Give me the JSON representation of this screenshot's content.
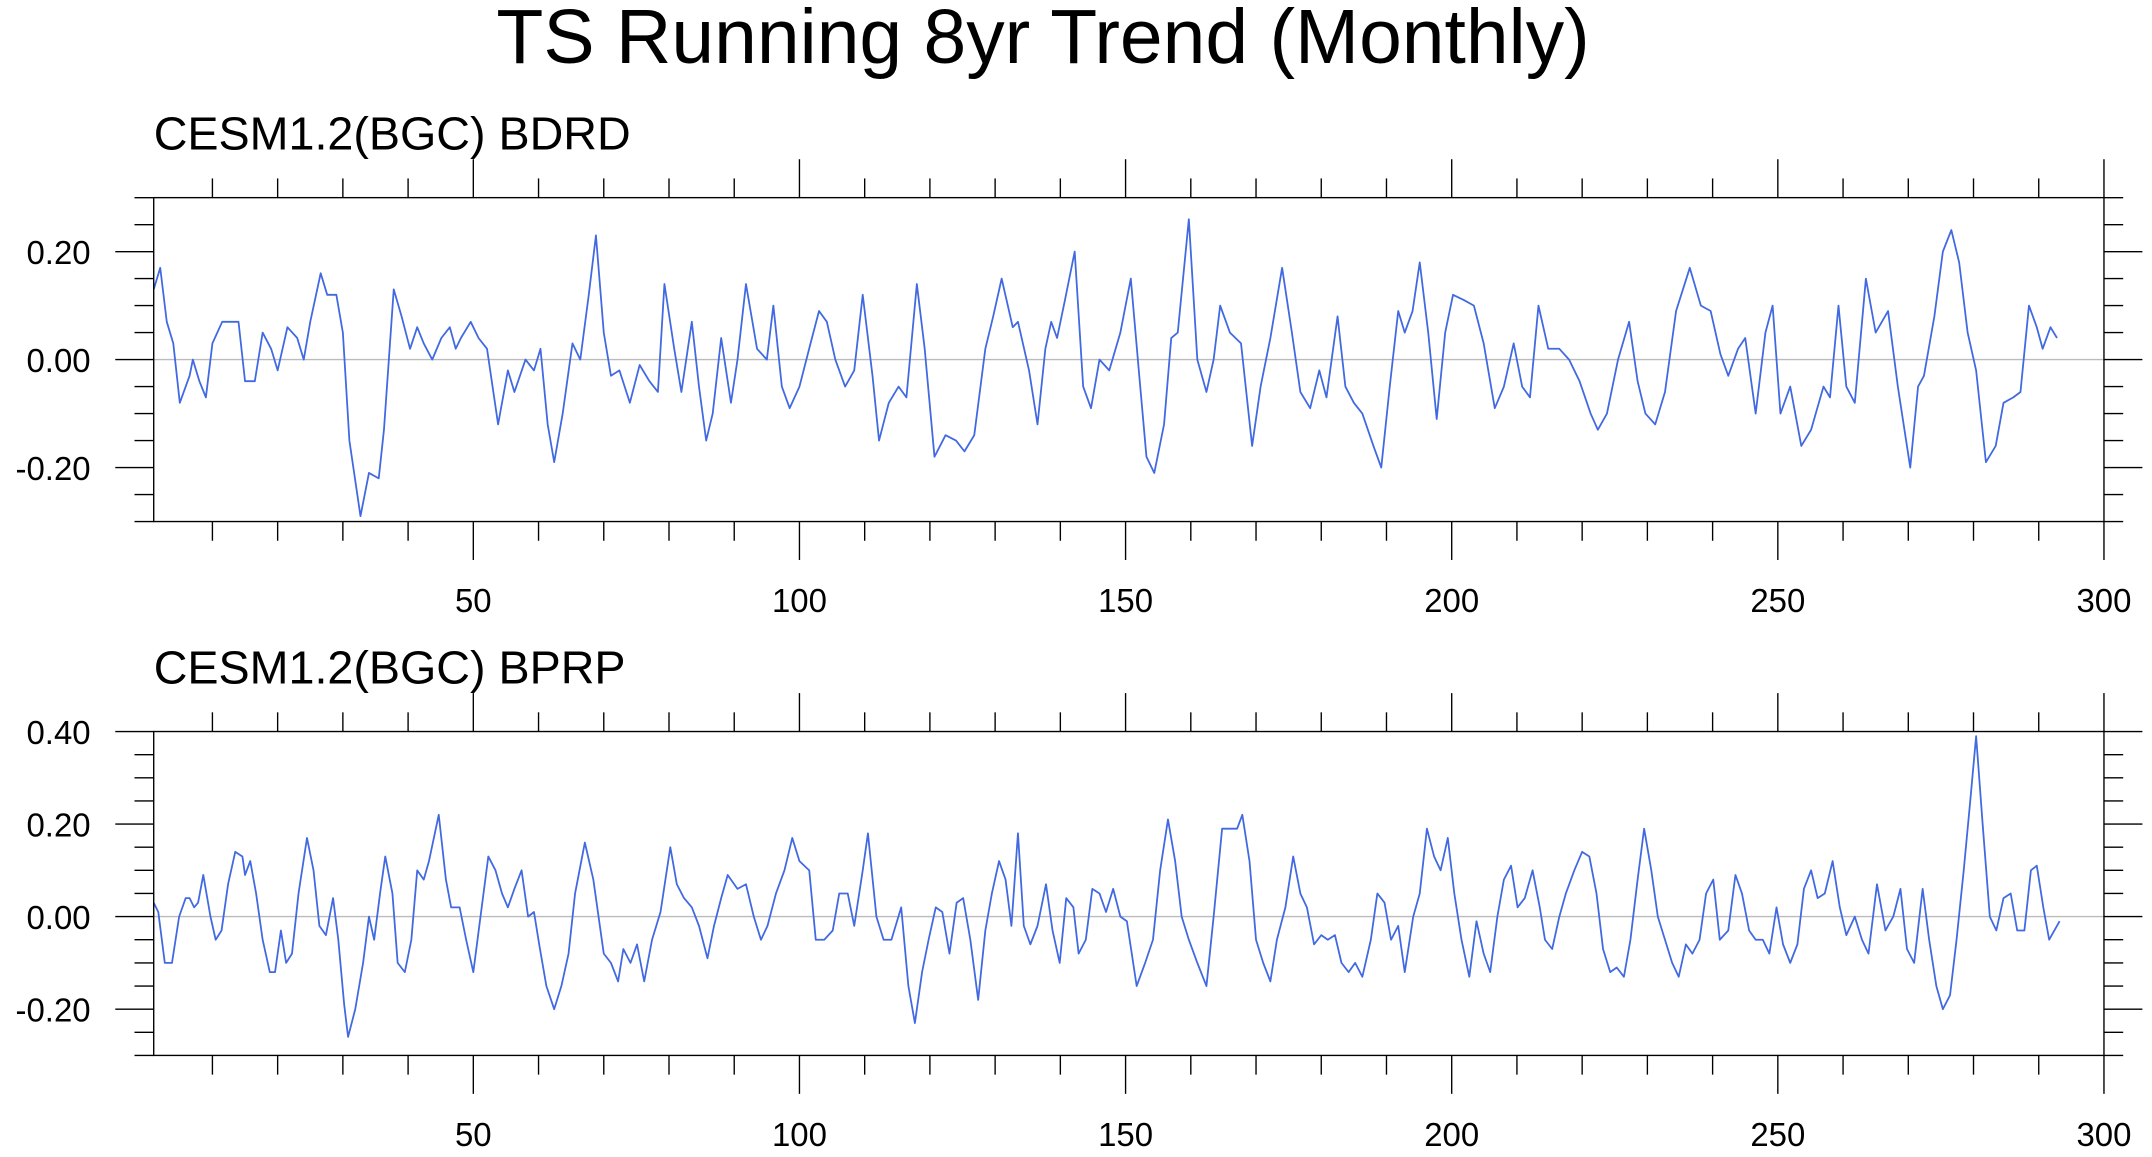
{
  "title": "TS Running 8yr Trend (Monthly)",
  "chart_data": [
    {
      "type": "line",
      "title": "CESM1.2(BGC) BDRD",
      "x": [
        1,
        2,
        3,
        4,
        5,
        6.5,
        7,
        8,
        9,
        10,
        11.5,
        14,
        15,
        16.5,
        17.7,
        19,
        20,
        21.5,
        23,
        24,
        25,
        26.6,
        27.6,
        29,
        30,
        31,
        32.7,
        34,
        35.5,
        36.3,
        37.8,
        39,
        40.3,
        41.4,
        42.4,
        43.7,
        45.1,
        46.4,
        47.3,
        48.1,
        49.6,
        50.8,
        52.1,
        53.8,
        55.3,
        56.3,
        58,
        59.3,
        60.3,
        61.4,
        62.4,
        63.7,
        65.2,
        66.4,
        67.7,
        68.8,
        70,
        71.1,
        72.4,
        74,
        75.5,
        77,
        78.3,
        79.3,
        80.8,
        81.9,
        83.5,
        84.6,
        85.7,
        86.7,
        88,
        89.5,
        90.5,
        91.8,
        93.5,
        95,
        96,
        97.3,
        98.5,
        100,
        101.7,
        103,
        104.2,
        105.5,
        107,
        108.4,
        109.7,
        111.2,
        112.2,
        113.7,
        115.2,
        116.4,
        118,
        119.2,
        120.7,
        122.4,
        124,
        125.3,
        126.8,
        128.5,
        129.7,
        131,
        132.7,
        133.5,
        135.2,
        136.5,
        137.7,
        138.6,
        139.5,
        140.7,
        142.2,
        143.5,
        144.7,
        146,
        147.5,
        149.2,
        150.8,
        152.1,
        153.2,
        154.4,
        155.9,
        157,
        158,
        159.7,
        161,
        162.4,
        163.5,
        164.5,
        166,
        167.7,
        169.4,
        170.7,
        172.2,
        174,
        175.5,
        176.8,
        178.3,
        179.7,
        180.8,
        182.5,
        183.7,
        185,
        186.3,
        188,
        189.2,
        190.5,
        191.8,
        192.8,
        194,
        195.1,
        196.4,
        197.7,
        199,
        200.2,
        201.9,
        203.4,
        204.9,
        206.6,
        208,
        209.5,
        210.8,
        212,
        213.3,
        214.8,
        216.5,
        218,
        219.6,
        221.3,
        222.4,
        223.8,
        225.5,
        227.2,
        228.5,
        229.7,
        231.2,
        232.7,
        234.4,
        236.5,
        238.2,
        239.7,
        241.2,
        242.4,
        243.9,
        245,
        246.6,
        248.1,
        249.2,
        250.4,
        251.9,
        253.6,
        255.1,
        257,
        258,
        259.3,
        260.5,
        261.8,
        263.5,
        265,
        266.9,
        268.4,
        270.3,
        271.5,
        272.4,
        274,
        275.3,
        276.6,
        277.8,
        279.1,
        280.4,
        281.9,
        283.4,
        284.6,
        286.1,
        287.2,
        288.5,
        289.7,
        290.6,
        291.8,
        292.8
      ],
      "series": [
        {
          "color": "#4169e1",
          "values": [
            0.13,
            0.17,
            0.07,
            0.03,
            -0.08,
            -0.03,
            0,
            -0.04,
            -0.07,
            0.03,
            0.07,
            0.07,
            -0.04,
            -0.04,
            0.05,
            0.02,
            -0.02,
            0.06,
            0.04,
            0,
            0.07,
            0.16,
            0.12,
            0.12,
            0.05,
            -0.15,
            -0.29,
            -0.21,
            -0.22,
            -0.13,
            0.13,
            0.08,
            0.02,
            0.06,
            0.03,
            0,
            0.04,
            0.06,
            0.02,
            0.04,
            0.07,
            0.04,
            0.02,
            -0.12,
            -0.02,
            -0.06,
            0,
            -0.02,
            0.02,
            -0.12,
            -0.19,
            -0.1,
            0.03,
            0,
            0.12,
            0.23,
            0.05,
            -0.03,
            -0.02,
            -0.08,
            -0.01,
            -0.04,
            -0.06,
            0.14,
            0.02,
            -0.06,
            0.07,
            -0.05,
            -0.15,
            -0.1,
            0.04,
            -0.08,
            0,
            0.14,
            0.02,
            0,
            0.1,
            -0.05,
            -0.09,
            -0.05,
            0.03,
            0.09,
            0.07,
            0,
            -0.05,
            -0.02,
            0.12,
            -0.03,
            -0.15,
            -0.08,
            -0.05,
            -0.07,
            0.14,
            0.02,
            -0.18,
            -0.14,
            -0.15,
            -0.17,
            -0.14,
            0.02,
            0.08,
            0.15,
            0.06,
            0.07,
            -0.02,
            -0.12,
            0.02,
            0.07,
            0.04,
            0.11,
            0.2,
            -0.05,
            -0.09,
            0,
            -0.02,
            0.05,
            0.15,
            -0.03,
            -0.18,
            -0.21,
            -0.12,
            0.04,
            0.05,
            0.26,
            0,
            -0.06,
            0,
            0.1,
            0.05,
            0.03,
            -0.16,
            -0.05,
            0.04,
            0.17,
            0.05,
            -0.06,
            -0.09,
            -0.02,
            -0.07,
            0.08,
            -0.05,
            -0.08,
            -0.1,
            -0.16,
            -0.2,
            -0.05,
            0.09,
            0.05,
            0.09,
            0.18,
            0.05,
            -0.11,
            0.05,
            0.12,
            0.11,
            0.1,
            0.03,
            -0.09,
            -0.05,
            0.03,
            -0.05,
            -0.07,
            0.1,
            0.02,
            0.02,
            0,
            -0.04,
            -0.1,
            -0.13,
            -0.1,
            0,
            0.07,
            -0.04,
            -0.1,
            -0.12,
            -0.06,
            0.09,
            0.17,
            0.1,
            0.09,
            0.01,
            -0.03,
            0.02,
            0.04,
            -0.1,
            0.05,
            0.1,
            -0.1,
            -0.05,
            -0.16,
            -0.13,
            -0.05,
            -0.07,
            0.1,
            -0.05,
            -0.08,
            0.15,
            0.05,
            0.09,
            -0.05,
            -0.2,
            -0.05,
            -0.03,
            0.08,
            0.2,
            0.24,
            0.18,
            0.05,
            -0.02,
            -0.19,
            -0.16,
            -0.08,
            -0.07,
            -0.06,
            0.1,
            0.06,
            0.02,
            0.06,
            0.04
          ]
        }
      ],
      "xlim": [
        1,
        300
      ],
      "xticks": [
        50,
        100,
        150,
        200,
        250,
        300
      ],
      "xminorticks": [
        10,
        20,
        30,
        40,
        60,
        70,
        80,
        90,
        110,
        120,
        130,
        140,
        160,
        170,
        180,
        190,
        210,
        220,
        230,
        240,
        260,
        270,
        280,
        290
      ],
      "ylim": [
        -0.3,
        0.3
      ],
      "yticks": [
        {
          "value": -0.2,
          "label": "-0.20"
        },
        {
          "value": 0,
          "label": "0.00"
        },
        {
          "value": 0.2,
          "label": "0.20"
        }
      ],
      "yminorticks": [
        -0.3,
        -0.25,
        -0.15,
        -0.1,
        -0.05,
        0.05,
        0.1,
        0.15,
        0.25,
        0.3
      ],
      "reference_line": 0
    },
    {
      "type": "line",
      "title": "CESM1.2(BGC) BPRP",
      "x": [
        1,
        1.7,
        2.7,
        3.8,
        4.9,
        5.9,
        6.5,
        7.2,
        7.8,
        8.6,
        9.7,
        10.5,
        11.4,
        12.4,
        13.5,
        14.6,
        15,
        15.8,
        16.7,
        17.7,
        18.8,
        19.6,
        20.5,
        21.3,
        22.2,
        23.2,
        24.5,
        25.5,
        26.4,
        27.4,
        28.5,
        29.3,
        30.2,
        30.8,
        31.9,
        33.1,
        34,
        34.8,
        35.7,
        36.5,
        37.6,
        38.4,
        39.5,
        40.5,
        41.4,
        42.4,
        43.2,
        44.7,
        45.8,
        46.6,
        47.9,
        48.9,
        50,
        51.1,
        52.3,
        53.4,
        54.4,
        55.3,
        56.3,
        57.4,
        58.4,
        59.3,
        60.1,
        61.2,
        62.4,
        63.5,
        64.6,
        65.6,
        67.1,
        68.4,
        69.2,
        70,
        71.1,
        72.2,
        73,
        74.1,
        75.1,
        76.2,
        77.4,
        78.7,
        80.2,
        81.2,
        82.3,
        83.5,
        84.6,
        85.9,
        86.9,
        88,
        89,
        90.5,
        91.8,
        93,
        94.1,
        95.1,
        96.4,
        97.7,
        98.9,
        100,
        101.5,
        102.5,
        103.8,
        105.1,
        106.1,
        107.4,
        108.4,
        109.7,
        110.5,
        111.8,
        112.9,
        114.1,
        115.6,
        116.7,
        117.7,
        118.8,
        119.8,
        120.9,
        121.9,
        123,
        124.1,
        125.1,
        126.2,
        127.4,
        128.5,
        129.5,
        130.6,
        131.6,
        132.5,
        133.5,
        134.4,
        135.4,
        136.5,
        137.8,
        138.8,
        139.9,
        140.9,
        142,
        142.8,
        143.9,
        144.9,
        146,
        147,
        148.1,
        149.2,
        150.2,
        151.7,
        153,
        154.2,
        155.3,
        156.5,
        157.6,
        158.6,
        159.7,
        161,
        162.4,
        163.5,
        164.8,
        166,
        167.1,
        167.9,
        169,
        170,
        171.1,
        172.2,
        173.2,
        174.5,
        175.7,
        176.8,
        177.8,
        178.9,
        180,
        181,
        182.1,
        183.1,
        184.2,
        185.2,
        186.3,
        187.6,
        188.6,
        189.7,
        190.7,
        191.8,
        192.8,
        194.1,
        195.1,
        196.2,
        197.3,
        198.3,
        199.4,
        200.4,
        201.5,
        202.7,
        203.8,
        204.9,
        205.9,
        207,
        208,
        209.1,
        210.1,
        211.2,
        212.4,
        213.5,
        214.3,
        215.4,
        216.5,
        217.5,
        218.8,
        220,
        221.1,
        222.2,
        223.2,
        224.3,
        225.3,
        226.4,
        227.4,
        228.5,
        229.5,
        230.6,
        231.6,
        232.7,
        233.8,
        234.8,
        235.9,
        236.9,
        238,
        239,
        240.1,
        241.1,
        242.4,
        243.5,
        244.5,
        245.6,
        246.6,
        247.7,
        248.7,
        249.8,
        250.8,
        251.9,
        253,
        254,
        255.1,
        256.1,
        257.2,
        258.4,
        259.5,
        260.5,
        261.8,
        262.9,
        263.9,
        265.2,
        266.5,
        267.7,
        268.8,
        269.8,
        270.9,
        272.2,
        273.2,
        274.3,
        275.3,
        276.4,
        277.4,
        278.5,
        279.5,
        280.4,
        281.4,
        282.5,
        283.5,
        284.6,
        285.7,
        286.7,
        287.8,
        288.8,
        289.7,
        290.7,
        291.6,
        292.4,
        293.2
      ],
      "series": [
        {
          "color": "#4169e1",
          "values": [
            0.03,
            0.01,
            -0.1,
            -0.1,
            0.0,
            0.04,
            0.04,
            0.02,
            0.03,
            0.09,
            0.0,
            -0.05,
            -0.03,
            0.07,
            0.14,
            0.13,
            0.09,
            0.12,
            0.05,
            -0.05,
            -0.12,
            -0.12,
            -0.03,
            -0.1,
            -0.08,
            0.05,
            0.17,
            0.1,
            -0.02,
            -0.04,
            0.04,
            -0.05,
            -0.19,
            -0.26,
            -0.2,
            -0.1,
            0.0,
            -0.05,
            0.05,
            0.13,
            0.05,
            -0.1,
            -0.12,
            -0.05,
            0.1,
            0.08,
            0.12,
            0.22,
            0.08,
            0.02,
            0.02,
            -0.05,
            -0.12,
            0.0,
            0.13,
            0.1,
            0.05,
            0.02,
            0.06,
            0.1,
            0.0,
            0.01,
            -0.06,
            -0.15,
            -0.2,
            -0.15,
            -0.08,
            0.05,
            0.16,
            0.08,
            0.0,
            -0.08,
            -0.1,
            -0.14,
            -0.07,
            -0.1,
            -0.06,
            -0.14,
            -0.05,
            0.01,
            0.15,
            0.07,
            0.04,
            0.02,
            -0.02,
            -0.09,
            -0.02,
            0.04,
            0.09,
            0.06,
            0.07,
            0.0,
            -0.05,
            -0.02,
            0.05,
            0.1,
            0.17,
            0.12,
            0.1,
            -0.05,
            -0.05,
            -0.03,
            0.05,
            0.05,
            -0.02,
            0.1,
            0.18,
            0.0,
            -0.05,
            -0.05,
            0.02,
            -0.15,
            -0.23,
            -0.12,
            -0.05,
            0.02,
            0.01,
            -0.08,
            0.03,
            0.04,
            -0.05,
            -0.18,
            -0.03,
            0.05,
            0.12,
            0.08,
            -0.02,
            0.18,
            -0.02,
            -0.06,
            -0.02,
            0.07,
            -0.03,
            -0.1,
            0.04,
            0.02,
            -0.08,
            -0.05,
            0.06,
            0.05,
            0.01,
            0.06,
            0.0,
            -0.01,
            -0.15,
            -0.1,
            -0.05,
            0.1,
            0.21,
            0.12,
            0.0,
            -0.05,
            -0.1,
            -0.15,
            0.0,
            0.19,
            0.19,
            0.19,
            0.22,
            0.12,
            -0.05,
            -0.1,
            -0.14,
            -0.05,
            0.02,
            0.13,
            0.05,
            0.02,
            -0.06,
            -0.04,
            -0.05,
            -0.04,
            -0.1,
            -0.12,
            -0.1,
            -0.13,
            -0.05,
            0.05,
            0.03,
            -0.05,
            -0.02,
            -0.12,
            0.0,
            0.05,
            0.19,
            0.13,
            0.1,
            0.17,
            0.05,
            -0.05,
            -0.13,
            -0.01,
            -0.08,
            -0.12,
            0.0,
            0.08,
            0.11,
            0.02,
            0.04,
            0.1,
            0.02,
            -0.05,
            -0.07,
            0.0,
            0.05,
            0.1,
            0.14,
            0.13,
            0.05,
            -0.07,
            -0.12,
            -0.11,
            -0.13,
            -0.05,
            0.08,
            0.19,
            0.1,
            0.0,
            -0.05,
            -0.1,
            -0.13,
            -0.06,
            -0.08,
            -0.05,
            0.05,
            0.08,
            -0.05,
            -0.03,
            0.09,
            0.05,
            -0.03,
            -0.05,
            -0.05,
            -0.08,
            0.02,
            -0.06,
            -0.1,
            -0.06,
            0.06,
            0.1,
            0.04,
            0.05,
            0.12,
            0.02,
            -0.04,
            0.0,
            -0.05,
            -0.08,
            0.07,
            -0.03,
            0.0,
            0.06,
            -0.07,
            -0.1,
            0.06,
            -0.05,
            -0.15,
            -0.2,
            -0.17,
            -0.05,
            0.1,
            0.25,
            0.39,
            0.2,
            0.0,
            -0.03,
            0.04,
            0.05,
            -0.03,
            -0.03,
            0.1,
            0.11,
            0.02,
            -0.05,
            -0.03,
            -0.01
          ]
        }
      ],
      "xlim": [
        1,
        300
      ],
      "xticks": [
        50,
        100,
        150,
        200,
        250,
        300
      ],
      "xminorticks": [
        10,
        20,
        30,
        40,
        60,
        70,
        80,
        90,
        110,
        120,
        130,
        140,
        160,
        170,
        180,
        190,
        210,
        220,
        230,
        240,
        260,
        270,
        280,
        290
      ],
      "ylim": [
        -0.3,
        0.4
      ],
      "yticks": [
        {
          "value": -0.2,
          "label": "-0.20"
        },
        {
          "value": 0,
          "label": "0.00"
        },
        {
          "value": 0.2,
          "label": "0.20"
        },
        {
          "value": 0.4,
          "label": "0.40"
        }
      ],
      "yminorticks": [
        -0.3,
        -0.25,
        -0.15,
        -0.1,
        -0.05,
        0.05,
        0.1,
        0.15,
        0.25,
        0.3,
        0.35
      ],
      "reference_line": 0
    }
  ]
}
